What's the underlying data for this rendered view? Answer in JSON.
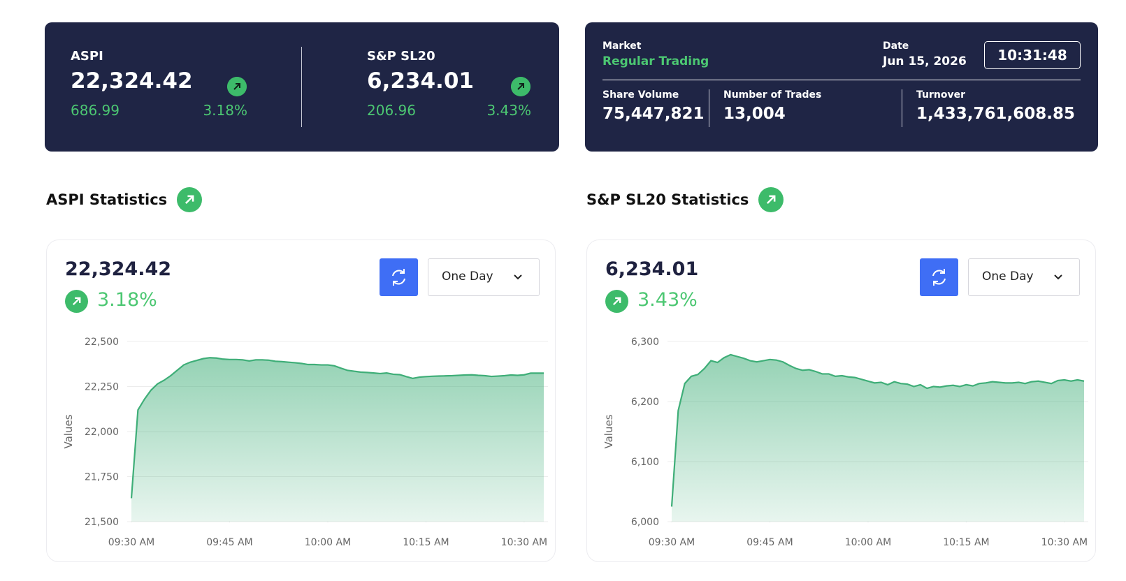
{
  "indices": [
    {
      "name": "ASPI",
      "value": "22,324.42",
      "change": "686.99",
      "change_percent": "3.18%"
    },
    {
      "name": "S&P SL20",
      "value": "6,234.01",
      "change": "206.96",
      "change_percent": "3.43%"
    }
  ],
  "market": {
    "label": "Market",
    "status": "Regular Trading",
    "date_label": "Date",
    "date": "Jun 15, 2026",
    "time": "10:31:48",
    "stats": [
      {
        "label": "Share Volume",
        "value": "75,447,821"
      },
      {
        "label": "Number of Trades",
        "value": "13,004"
      },
      {
        "label": "Turnover",
        "value": "1,433,761,608.85"
      }
    ]
  },
  "panels": [
    {
      "title": "ASPI Statistics",
      "value": "22,324.42",
      "change_percent": "3.18%",
      "period": "One Day"
    },
    {
      "title": "S&P SL20 Statistics",
      "value": "6,234.01",
      "change_percent": "3.43%",
      "period": "One Day"
    }
  ],
  "chart_data": [
    {
      "type": "area",
      "y_label": "Values",
      "color": "#3fae78",
      "grid": true,
      "x": [
        "09:30",
        "09:31",
        "09:32",
        "09:33",
        "09:34",
        "09:35",
        "09:36",
        "09:37",
        "09:38",
        "09:39",
        "09:40",
        "09:41",
        "09:42",
        "09:43",
        "09:44",
        "09:45",
        "09:46",
        "09:47",
        "09:48",
        "09:49",
        "09:50",
        "09:51",
        "09:52",
        "09:53",
        "09:54",
        "09:55",
        "09:56",
        "09:57",
        "09:58",
        "09:59",
        "10:00",
        "10:01",
        "10:02",
        "10:03",
        "10:04",
        "10:05",
        "10:06",
        "10:07",
        "10:08",
        "10:09",
        "10:10",
        "10:11",
        "10:12",
        "10:13",
        "10:14",
        "10:15",
        "10:16",
        "10:17",
        "10:18",
        "10:19",
        "10:20",
        "10:21",
        "10:22",
        "10:23",
        "10:24",
        "10:25",
        "10:26",
        "10:27",
        "10:28",
        "10:29",
        "10:30",
        "10:31",
        "10:32",
        "10:33"
      ],
      "values": [
        21630,
        22120,
        22180,
        22230,
        22265,
        22285,
        22310,
        22340,
        22370,
        22385,
        22395,
        22405,
        22410,
        22408,
        22402,
        22400,
        22400,
        22398,
        22392,
        22398,
        22398,
        22396,
        22390,
        22388,
        22385,
        22382,
        22378,
        22372,
        22372,
        22370,
        22370,
        22365,
        22352,
        22340,
        22335,
        22330,
        22328,
        22325,
        22322,
        22325,
        22318,
        22316,
        22305,
        22295,
        22302,
        22305,
        22307,
        22308,
        22309,
        22310,
        22312,
        22314,
        22315,
        22312,
        22310,
        22306,
        22308,
        22310,
        22314,
        22312,
        22315,
        22324,
        22324,
        22324
      ],
      "xlim": [
        "09:30",
        "10:33"
      ],
      "xticks": [
        {
          "value": "09:30",
          "label": "09:30 AM"
        },
        {
          "value": "09:45",
          "label": "09:45 AM"
        },
        {
          "value": "10:00",
          "label": "10:00 AM"
        },
        {
          "value": "10:15",
          "label": "10:15 AM"
        },
        {
          "value": "10:30",
          "label": "10:30 AM"
        }
      ],
      "ylim": [
        21500,
        22500
      ],
      "yticks": [
        {
          "value": 21500,
          "label": "21,500"
        },
        {
          "value": 21750,
          "label": "21,750"
        },
        {
          "value": 22000,
          "label": "22,000"
        },
        {
          "value": 22250,
          "label": "22,250"
        },
        {
          "value": 22500,
          "label": "22,500"
        }
      ]
    },
    {
      "type": "area",
      "y_label": "Values",
      "color": "#3fae78",
      "grid": true,
      "x": [
        "09:30",
        "09:31",
        "09:32",
        "09:33",
        "09:34",
        "09:35",
        "09:36",
        "09:37",
        "09:38",
        "09:39",
        "09:40",
        "09:41",
        "09:42",
        "09:43",
        "09:44",
        "09:45",
        "09:46",
        "09:47",
        "09:48",
        "09:49",
        "09:50",
        "09:51",
        "09:52",
        "09:53",
        "09:54",
        "09:55",
        "09:56",
        "09:57",
        "09:58",
        "09:59",
        "10:00",
        "10:01",
        "10:02",
        "10:03",
        "10:04",
        "10:05",
        "10:06",
        "10:07",
        "10:08",
        "10:09",
        "10:10",
        "10:11",
        "10:12",
        "10:13",
        "10:14",
        "10:15",
        "10:16",
        "10:17",
        "10:18",
        "10:19",
        "10:20",
        "10:21",
        "10:22",
        "10:23",
        "10:24",
        "10:25",
        "10:26",
        "10:27",
        "10:28",
        "10:29",
        "10:30",
        "10:31",
        "10:32",
        "10:33"
      ],
      "values": [
        6025,
        6185,
        6230,
        6242,
        6245,
        6255,
        6268,
        6265,
        6273,
        6278,
        6275,
        6272,
        6268,
        6266,
        6268,
        6270,
        6269,
        6266,
        6260,
        6255,
        6252,
        6253,
        6250,
        6246,
        6246,
        6242,
        6243,
        6241,
        6240,
        6237,
        6234,
        6231,
        6232,
        6228,
        6233,
        6230,
        6229,
        6225,
        6228,
        6222,
        6225,
        6224,
        6226,
        6227,
        6225,
        6228,
        6226,
        6230,
        6231,
        6233,
        6232,
        6231,
        6231,
        6232,
        6230,
        6233,
        6234,
        6232,
        6230,
        6235,
        6236,
        6234,
        6236,
        6234
      ],
      "xlim": [
        "09:30",
        "10:33"
      ],
      "xticks": [
        {
          "value": "09:30",
          "label": "09:30 AM"
        },
        {
          "value": "09:45",
          "label": "09:45 AM"
        },
        {
          "value": "10:00",
          "label": "10:00 AM"
        },
        {
          "value": "10:15",
          "label": "10:15 AM"
        },
        {
          "value": "10:30",
          "label": "10:30 AM"
        }
      ],
      "ylim": [
        6000,
        6300
      ],
      "yticks": [
        {
          "value": 6000,
          "label": "6,000"
        },
        {
          "value": 6100,
          "label": "6,100"
        },
        {
          "value": 6200,
          "label": "6,200"
        },
        {
          "value": 6300,
          "label": "6,300"
        }
      ]
    }
  ]
}
